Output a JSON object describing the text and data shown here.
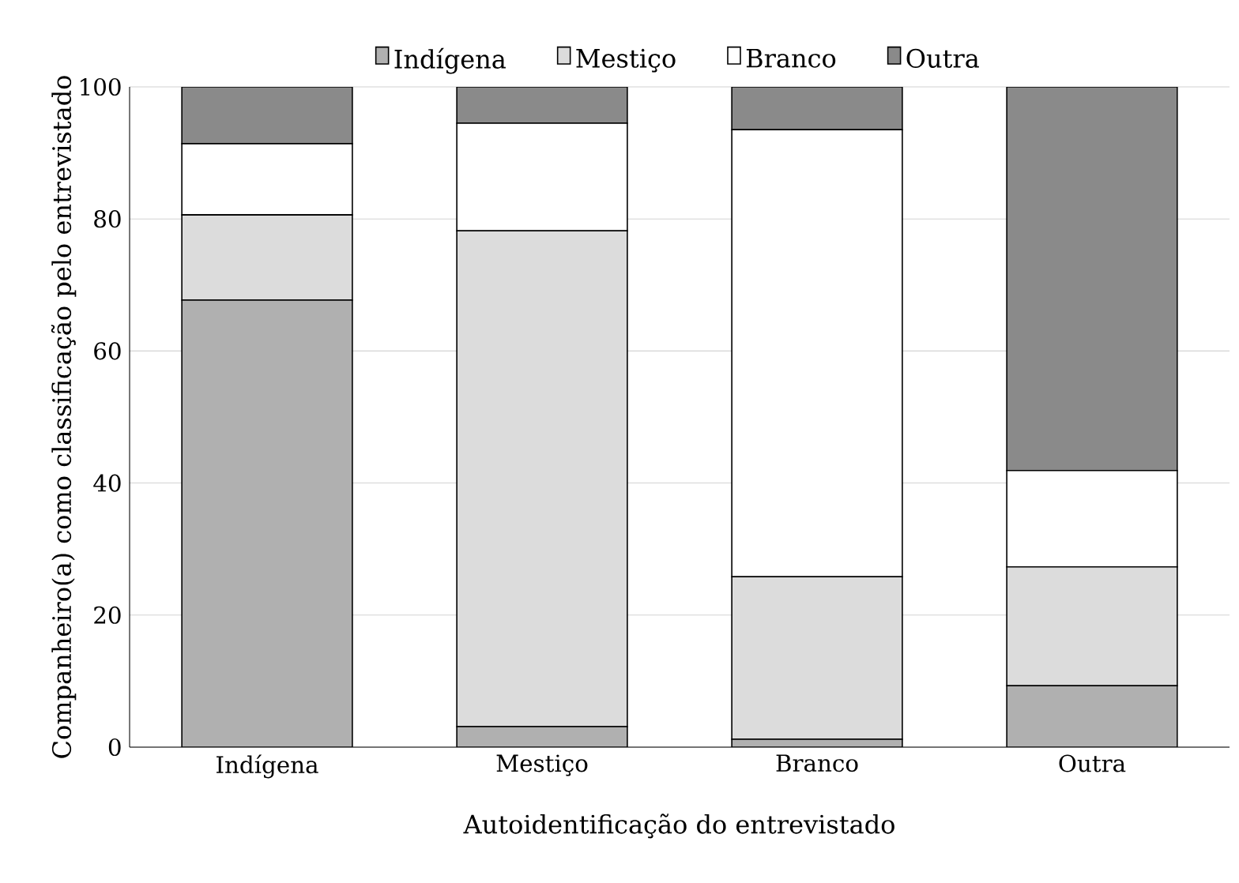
{
  "chart_data": {
    "type": "bar",
    "stacked": true,
    "xlabel": "Autoidentificação do entrevistado",
    "ylabel": "Companheiro(a) como classificação pelo entrevistado",
    "categories": [
      "Indígena",
      "Mestiço",
      "Branco",
      "Outra"
    ],
    "series": [
      {
        "name": "Indígena",
        "color": "#b0b0b0",
        "values": [
          67.7,
          3.1,
          1.2,
          9.3
        ]
      },
      {
        "name": "Mestiço",
        "color": "#dcdcdc",
        "values": [
          12.9,
          75.1,
          24.6,
          18.0
        ]
      },
      {
        "name": "Branco",
        "color": "#ffffff",
        "values": [
          10.8,
          16.3,
          67.7,
          14.6
        ]
      },
      {
        "name": "Outra",
        "color": "#8a8a8a",
        "values": [
          8.6,
          5.5,
          6.5,
          58.1
        ]
      }
    ],
    "ylim": [
      0,
      100
    ],
    "yticks": [
      0,
      20,
      40,
      60,
      80,
      100
    ],
    "grid": "y",
    "legend": "top"
  }
}
